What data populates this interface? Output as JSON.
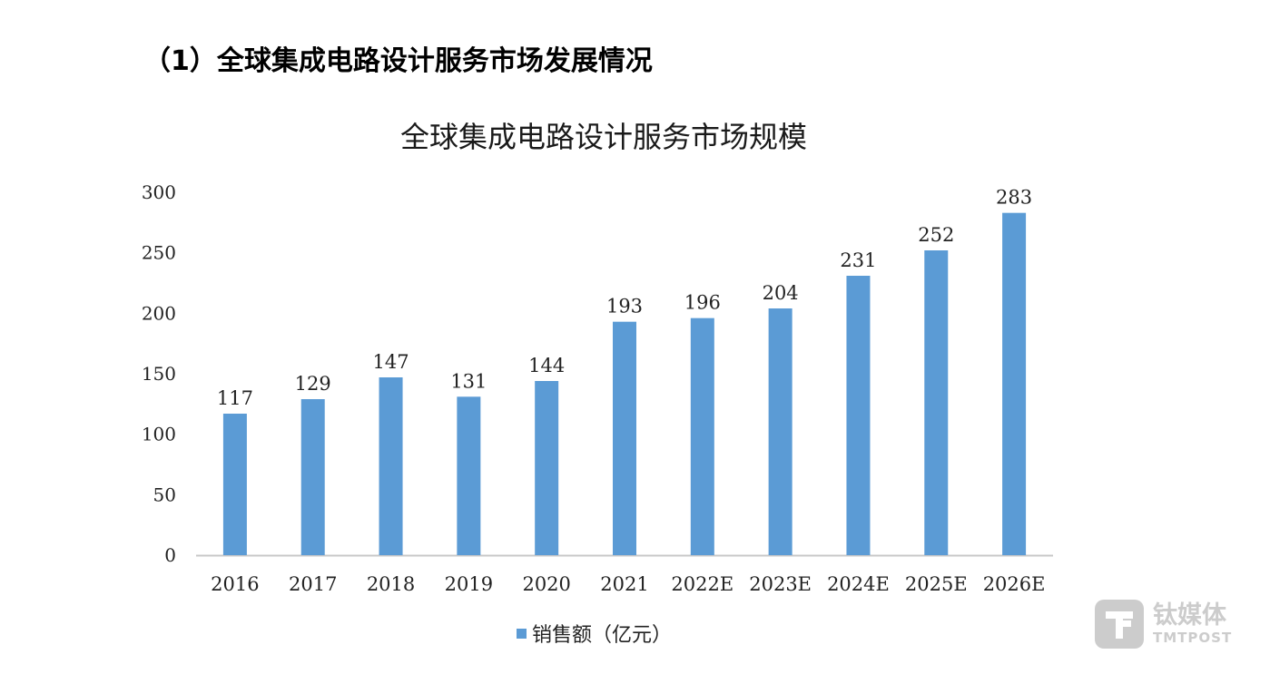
{
  "heading": "（1）全球集成电路设计服务市场发展情况",
  "chart_data": {
    "type": "bar",
    "title": "全球集成电路设计服务市场规模",
    "categories": [
      "2016",
      "2017",
      "2018",
      "2019",
      "2020",
      "2021",
      "2022E",
      "2023E",
      "2024E",
      "2025E",
      "2026E"
    ],
    "series": [
      {
        "name": "销售额（亿元）",
        "values": [
          117,
          129,
          147,
          131,
          144,
          193,
          196,
          204,
          231,
          252,
          283
        ],
        "color": "#5b9bd5"
      }
    ],
    "yticks": [
      0,
      50,
      100,
      150,
      200,
      250,
      300
    ],
    "ylim": [
      0,
      300
    ],
    "xlabel": "",
    "ylabel": "",
    "grid": false,
    "legend": "bottom-center",
    "data_labels": true
  },
  "watermark": {
    "cn": "钛媒体",
    "en": "TMTPOST"
  }
}
